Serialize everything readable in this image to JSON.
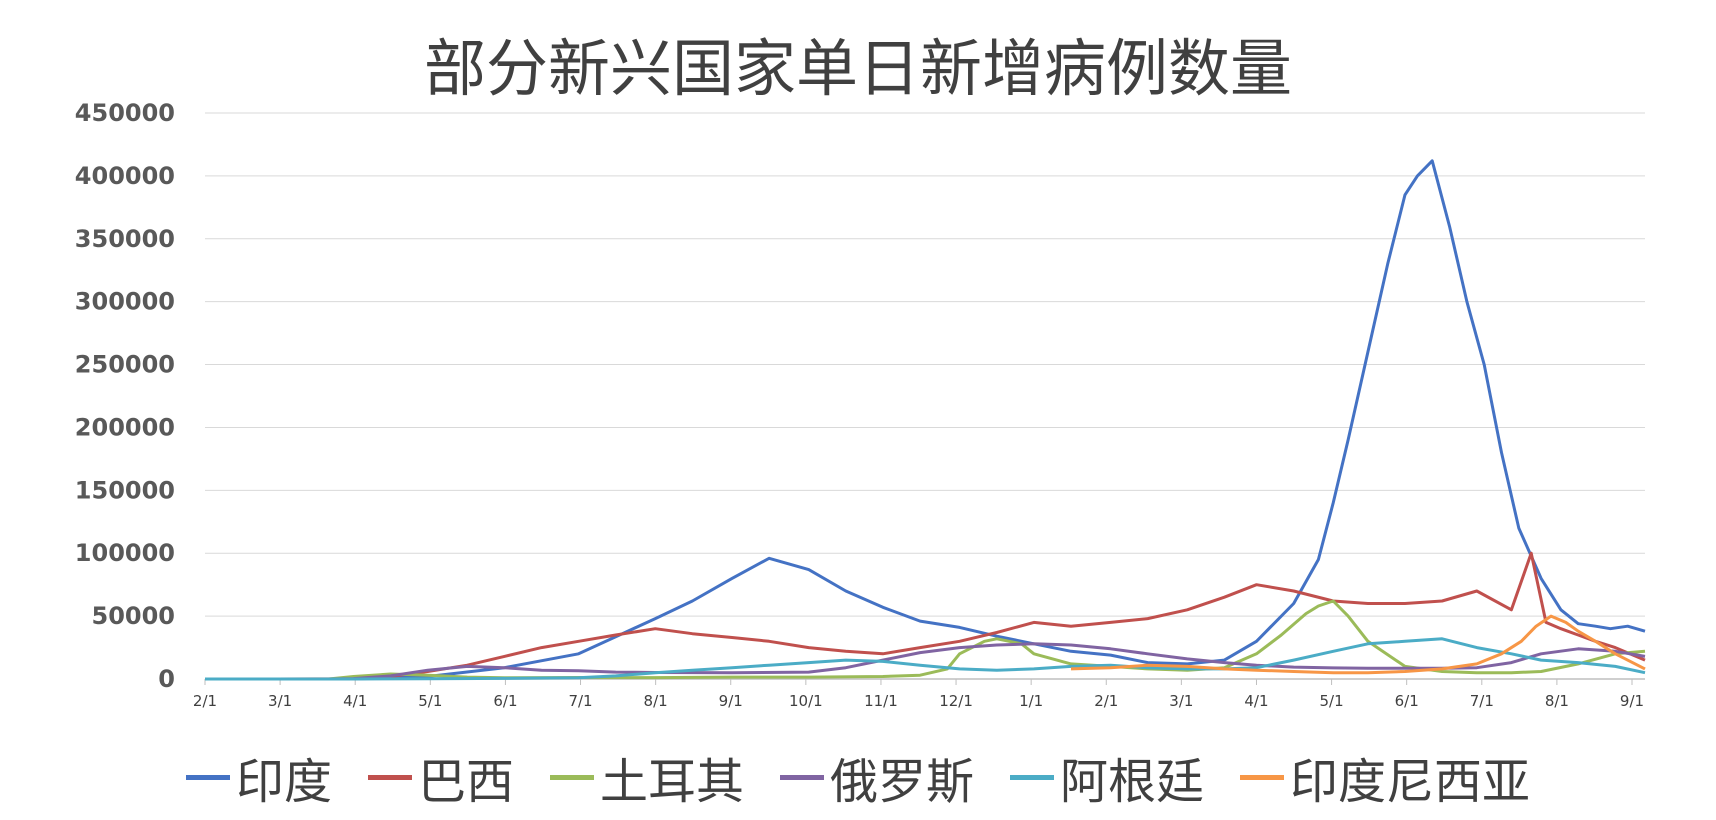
{
  "chart_data": {
    "type": "line",
    "title": "部分新兴国家单日新增病例数量",
    "xlabel": "",
    "ylabel": "",
    "ylim": [
      0,
      450000
    ],
    "yticks": [
      "0",
      "50000",
      "100000",
      "150000",
      "200000",
      "250000",
      "300000",
      "350000",
      "400000",
      "450000"
    ],
    "x_ticks": [
      "2/1",
      "3/1",
      "4/1",
      "5/1",
      "6/1",
      "7/1",
      "8/1",
      "9/1",
      "10/1",
      "11/1",
      "12/1",
      "1/1",
      "2/1",
      "3/1",
      "4/1",
      "5/1",
      "6/1",
      "7/1",
      "8/1",
      "9/1"
    ],
    "grid": true,
    "legend_position": "bottom",
    "series": [
      {
        "name": "印度",
        "color": "#4472C4",
        "x": [
          0,
          29,
          60,
          90,
          121,
          151,
          182,
          197,
          213,
          228,
          244,
          259,
          274,
          289,
          305,
          320,
          335,
          350,
          366,
          381,
          397,
          412,
          425,
          440,
          450,
          456,
          462,
          470,
          478,
          485,
          490,
          496,
          503,
          510,
          517,
          524,
          531,
          540,
          548,
          555,
          562,
          568,
          575,
          582
        ],
        "values": [
          0,
          0,
          0,
          2000,
          9000,
          20000,
          48000,
          62000,
          80000,
          96000,
          87000,
          70000,
          57000,
          46000,
          41000,
          34000,
          28000,
          22000,
          19000,
          13000,
          12000,
          15000,
          30000,
          60000,
          95000,
          140000,
          190000,
          260000,
          330000,
          385000,
          400000,
          412000,
          360000,
          300000,
          250000,
          180000,
          120000,
          80000,
          55000,
          44000,
          42000,
          40000,
          42000,
          38000
        ]
      },
      {
        "name": "巴西",
        "color": "#C0504D",
        "x": [
          0,
          29,
          60,
          75,
          90,
          106,
          121,
          136,
          151,
          166,
          182,
          197,
          213,
          228,
          244,
          259,
          274,
          289,
          305,
          320,
          335,
          350,
          366,
          381,
          397,
          412,
          425,
          440,
          456,
          470,
          485,
          500,
          514,
          528,
          536,
          542,
          548,
          555,
          562,
          570,
          582
        ],
        "values": [
          0,
          0,
          200,
          2000,
          6000,
          11000,
          18000,
          25000,
          30000,
          35000,
          40000,
          36000,
          33000,
          30000,
          25000,
          22000,
          20000,
          25000,
          30000,
          37000,
          45000,
          42000,
          45000,
          48000,
          55000,
          65000,
          75000,
          70000,
          62000,
          60000,
          60000,
          62000,
          70000,
          55000,
          100000,
          45000,
          40000,
          35000,
          30000,
          25000,
          15000
        ]
      },
      {
        "name": "土耳其",
        "color": "#9BBB59",
        "x": [
          0,
          29,
          50,
          60,
          75,
          90,
          106,
          121,
          151,
          182,
          213,
          244,
          274,
          289,
          300,
          305,
          315,
          320,
          330,
          335,
          350,
          366,
          381,
          397,
          412,
          425,
          435,
          445,
          450,
          456,
          462,
          470,
          485,
          500,
          514,
          528,
          540,
          555,
          570,
          582
        ],
        "values": [
          0,
          0,
          0,
          2000,
          4000,
          3000,
          1500,
          1000,
          1200,
          1100,
          1500,
          1500,
          2000,
          3000,
          8000,
          20000,
          30000,
          32000,
          28000,
          20000,
          12000,
          10000,
          8000,
          7000,
          9000,
          20000,
          35000,
          52000,
          58000,
          62000,
          50000,
          30000,
          10000,
          6000,
          5000,
          5000,
          6000,
          12000,
          20000,
          22000
        ]
      },
      {
        "name": "俄罗斯",
        "color": "#8064A2",
        "x": [
          0,
          29,
          50,
          60,
          75,
          90,
          106,
          121,
          136,
          151,
          166,
          182,
          213,
          244,
          259,
          274,
          289,
          305,
          320,
          335,
          350,
          366,
          381,
          397,
          412,
          425,
          440,
          456,
          470,
          485,
          500,
          514,
          528,
          540,
          555,
          570,
          582
        ],
        "values": [
          0,
          0,
          0,
          300,
          2500,
          7000,
          10000,
          9000,
          7000,
          6500,
          5500,
          5200,
          5000,
          5500,
          9000,
          15000,
          21000,
          25000,
          27000,
          28000,
          27000,
          24000,
          20000,
          16000,
          13000,
          11000,
          9500,
          8800,
          8500,
          8500,
          8500,
          9000,
          13000,
          20000,
          24000,
          22000,
          18000
        ]
      },
      {
        "name": "阿根廷",
        "color": "#4BACC6",
        "x": [
          0,
          29,
          60,
          90,
          121,
          151,
          166,
          182,
          197,
          213,
          228,
          244,
          259,
          274,
          289,
          305,
          320,
          335,
          350,
          366,
          381,
          397,
          412,
          425,
          440,
          456,
          470,
          485,
          500,
          514,
          528,
          540,
          555,
          570,
          582
        ],
        "values": [
          0,
          0,
          0,
          200,
          500,
          1000,
          2500,
          5000,
          7000,
          9000,
          11000,
          13000,
          15000,
          14000,
          11000,
          8000,
          7000,
          8000,
          10000,
          11000,
          9000,
          8000,
          8000,
          9000,
          15000,
          22000,
          28000,
          30000,
          32000,
          25000,
          20000,
          15000,
          13000,
          10000,
          5000
        ]
      },
      {
        "name": "印度尼西亚",
        "color": "#F79646",
        "x": [
          350,
          366,
          381,
          397,
          412,
          425,
          440,
          456,
          470,
          485,
          500,
          514,
          524,
          532,
          538,
          544,
          550,
          555,
          562,
          570,
          582
        ],
        "values": [
          8000,
          9000,
          11000,
          10000,
          8000,
          7000,
          6000,
          5000,
          5000,
          6000,
          8000,
          12000,
          20000,
          30000,
          42000,
          50000,
          45000,
          38000,
          30000,
          20000,
          8000
        ]
      }
    ]
  }
}
